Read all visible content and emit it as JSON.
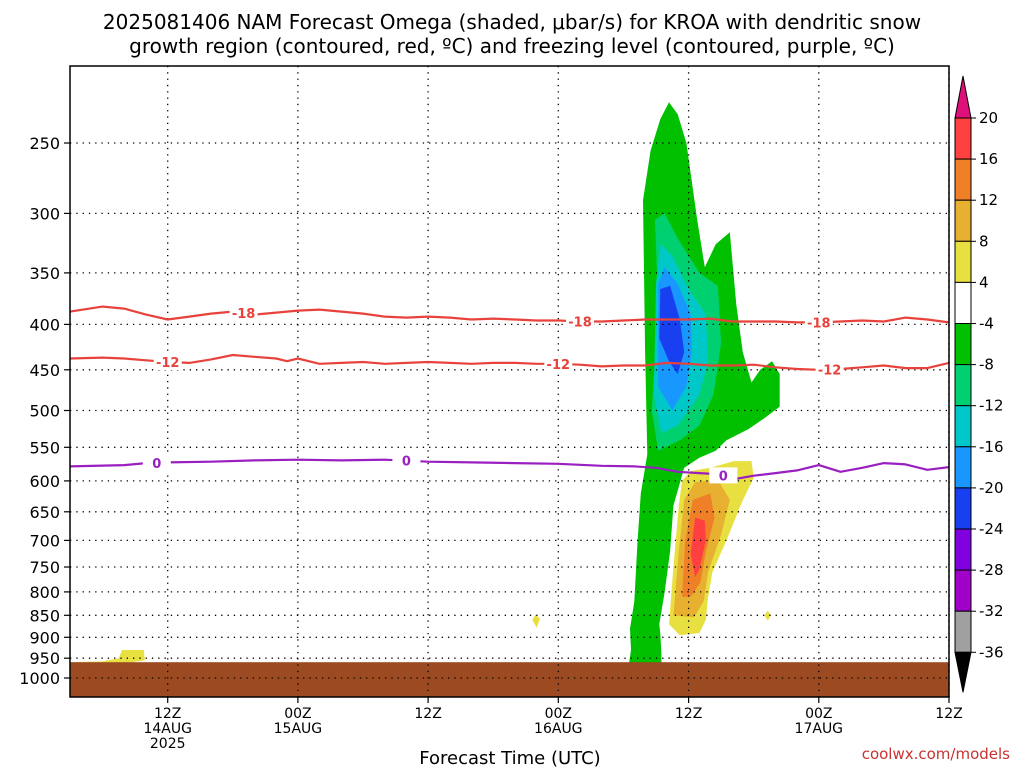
{
  "title": {
    "line1": "2025081406 NAM Forecast Omega (shaded, μbar/s) for KROA with dendritic snow",
    "line2": "growth region (contoured, red, ºC) and freezing level (contoured, purple, ºC)"
  },
  "credit": "coolwx.com/models",
  "colors": {
    "isotherm": "#e8423c",
    "freezing": "#9a1fc0",
    "ground": "#9c4a22",
    "credit": "#c83232"
  },
  "chart_data": {
    "type": "heatmap",
    "xlabel": "Forecast Time (UTC)",
    "ylabel": "",
    "x_range_hours": [
      -3,
      78
    ],
    "y_axis": {
      "scale": "log-pressure",
      "ylim_mb": [
        1030,
        200
      ],
      "ticks": [
        250,
        300,
        350,
        400,
        450,
        500,
        550,
        600,
        650,
        700,
        750,
        800,
        850,
        900,
        950,
        1000
      ]
    },
    "x_ticks": [
      {
        "hour": 6,
        "lines": [
          "12Z",
          "14AUG",
          "2025"
        ]
      },
      {
        "hour": 18,
        "lines": [
          "00Z",
          "15AUG"
        ]
      },
      {
        "hour": 30,
        "lines": [
          "12Z"
        ]
      },
      {
        "hour": 42,
        "lines": [
          "00Z",
          "16AUG"
        ]
      },
      {
        "hour": 54,
        "lines": [
          "12Z"
        ]
      },
      {
        "hour": 66,
        "lines": [
          "00Z",
          "17AUG"
        ]
      },
      {
        "hour": 78,
        "lines": [
          "12Z"
        ]
      }
    ],
    "grid": true,
    "colorbar": {
      "levels": [
        -36,
        -32,
        -28,
        -24,
        -20,
        -16,
        -12,
        -8,
        -4,
        4,
        8,
        12,
        16,
        20
      ],
      "labels": [
        "20",
        "16",
        "12",
        "8",
        "4",
        "-4",
        "-8",
        "-12",
        "-16",
        "-20",
        "-24",
        "-28",
        "-32",
        "-36"
      ],
      "colors_top_to_bottom": [
        "#ff4040",
        "#f08028",
        "#e8b030",
        "#e8e040",
        "#ffffff",
        "#00c000",
        "#00d070",
        "#00c8c8",
        "#1898ff",
        "#1840f0",
        "#8000e0",
        "#a000c8",
        "#a0a0a0"
      ],
      "top_extend": "#e0107a",
      "bottom_extend": "#000000"
    },
    "omega_regions": [
      {
        "value_range": [
          -8,
          -4
        ],
        "color": "#00c000",
        "points": [
          [
            49.5,
            965
          ],
          [
            51.5,
            965
          ],
          [
            51.5,
            940
          ],
          [
            51.4,
            890
          ],
          [
            51.3,
            870
          ],
          [
            51.8,
            800
          ],
          [
            52.3,
            720
          ],
          [
            52.6,
            640
          ],
          [
            53.6,
            580
          ],
          [
            55.0,
            565
          ],
          [
            56.5,
            555
          ],
          [
            57.5,
            540
          ],
          [
            59.5,
            525
          ],
          [
            61.0,
            510
          ],
          [
            62.4,
            495
          ],
          [
            62.4,
            455
          ],
          [
            61.7,
            440
          ],
          [
            60.6,
            450
          ],
          [
            59.8,
            465
          ],
          [
            59.0,
            430
          ],
          [
            58.4,
            380
          ],
          [
            57.8,
            315
          ],
          [
            56.5,
            325
          ],
          [
            55.5,
            345
          ],
          [
            54.8,
            305
          ],
          [
            53.8,
            250
          ],
          [
            53.0,
            232
          ],
          [
            52.2,
            225
          ],
          [
            51.4,
            235
          ],
          [
            50.5,
            255
          ],
          [
            49.8,
            290
          ],
          [
            50.0,
            430
          ],
          [
            50.2,
            560
          ],
          [
            49.6,
            620
          ],
          [
            49.3,
            700
          ],
          [
            49.0,
            820
          ],
          [
            48.6,
            880
          ],
          [
            48.7,
            930
          ],
          [
            48.5,
            965
          ]
        ]
      },
      {
        "value_range": [
          -12,
          -8
        ],
        "color": "#00d070",
        "points": [
          [
            50.6,
            500
          ],
          [
            51.2,
            380
          ],
          [
            50.9,
            305
          ],
          [
            51.8,
            300
          ],
          [
            53.0,
            320
          ],
          [
            55.0,
            350
          ],
          [
            56.7,
            362
          ],
          [
            57.0,
            420
          ],
          [
            56.3,
            480
          ],
          [
            55.0,
            520
          ],
          [
            53.2,
            540
          ],
          [
            51.2,
            555
          ]
        ]
      },
      {
        "value_range": [
          -16,
          -12
        ],
        "color": "#00c8c8",
        "points": [
          [
            50.8,
            480
          ],
          [
            51.0,
            360
          ],
          [
            51.4,
            325
          ],
          [
            52.5,
            335
          ],
          [
            54.0,
            365
          ],
          [
            55.6,
            390
          ],
          [
            55.8,
            440
          ],
          [
            55.0,
            480
          ],
          [
            53.0,
            520
          ],
          [
            51.5,
            530
          ]
        ]
      },
      {
        "value_range": [
          -20,
          -16
        ],
        "color": "#1898ff",
        "points": [
          [
            51.2,
            470
          ],
          [
            51.2,
            360
          ],
          [
            51.8,
            345
          ],
          [
            53.0,
            360
          ],
          [
            54.2,
            390
          ],
          [
            54.3,
            430
          ],
          [
            53.8,
            470
          ],
          [
            52.5,
            500
          ]
        ]
      },
      {
        "value_range": [
          -24,
          -20
        ],
        "color": "#1840f0",
        "points": [
          [
            51.3,
            415
          ],
          [
            51.4,
            365
          ],
          [
            52.3,
            362
          ],
          [
            53.2,
            395
          ],
          [
            53.6,
            430
          ],
          [
            53.0,
            455
          ],
          [
            52.2,
            440
          ]
        ]
      },
      {
        "value_range": [
          4,
          8
        ],
        "color": "#e8e040",
        "points": [
          [
            52.2,
            870
          ],
          [
            52.6,
            750
          ],
          [
            53.1,
            640
          ],
          [
            53.4,
            600
          ],
          [
            54.2,
            585
          ],
          [
            56.0,
            580
          ],
          [
            58.2,
            570
          ],
          [
            59.8,
            570
          ],
          [
            60.0,
            595
          ],
          [
            58.9,
            635
          ],
          [
            57.5,
            700
          ],
          [
            56.2,
            760
          ],
          [
            55.8,
            810
          ],
          [
            55.6,
            860
          ],
          [
            55.0,
            890
          ],
          [
            53.2,
            895
          ]
        ]
      },
      {
        "value_range": [
          8,
          12
        ],
        "color": "#e8b030",
        "points": [
          [
            52.6,
            850
          ],
          [
            53.1,
            720
          ],
          [
            53.6,
            630
          ],
          [
            54.6,
            602
          ],
          [
            56.7,
            598
          ],
          [
            57.8,
            630
          ],
          [
            57.0,
            690
          ],
          [
            55.8,
            760
          ],
          [
            55.4,
            820
          ],
          [
            54.5,
            855
          ]
        ]
      },
      {
        "value_range": [
          12,
          16
        ],
        "color": "#f08028",
        "points": [
          [
            53.4,
            810
          ],
          [
            53.7,
            700
          ],
          [
            54.4,
            630
          ],
          [
            56.0,
            620
          ],
          [
            56.4,
            660
          ],
          [
            55.6,
            720
          ],
          [
            55.1,
            780
          ],
          [
            54.2,
            810
          ]
        ]
      },
      {
        "value_range": [
          16,
          20
        ],
        "color": "#ff4040",
        "points": [
          [
            54.2,
            725
          ],
          [
            54.6,
            660
          ],
          [
            55.5,
            665
          ],
          [
            55.6,
            700
          ],
          [
            55.0,
            755
          ],
          [
            54.6,
            770
          ]
        ]
      },
      {
        "value_range": [
          4,
          8
        ],
        "color": "#e8e040",
        "points": [
          [
            -3,
            960
          ],
          [
            0,
            958
          ],
          [
            1.5,
            950
          ],
          [
            1.8,
            930
          ],
          [
            3.8,
            930
          ],
          [
            3.9,
            955
          ],
          [
            1.5,
            965
          ],
          [
            -3,
            968
          ]
        ]
      },
      {
        "value_range": [
          4,
          8
        ],
        "color": "#e8e040",
        "points": [
          [
            39.6,
            860
          ],
          [
            39.9,
            848
          ],
          [
            40.3,
            858
          ],
          [
            40.0,
            878
          ]
        ]
      },
      {
        "value_range": [
          4,
          8
        ],
        "color": "#e8e040",
        "points": [
          [
            61.0,
            850
          ],
          [
            61.3,
            840
          ],
          [
            61.6,
            850
          ],
          [
            61.3,
            862
          ]
        ]
      }
    ],
    "contours": [
      {
        "label": "-18",
        "color": "#e8423c",
        "points": [
          [
            -3,
            387
          ],
          [
            0,
            382
          ],
          [
            2,
            384
          ],
          [
            4,
            390
          ],
          [
            6,
            395
          ],
          [
            8,
            392
          ],
          [
            10,
            389
          ],
          [
            12,
            387
          ],
          [
            14,
            390
          ],
          [
            16,
            388
          ],
          [
            18,
            386
          ],
          [
            20,
            385
          ],
          [
            22,
            387
          ],
          [
            24,
            389
          ],
          [
            26,
            392
          ],
          [
            28,
            393
          ],
          [
            30,
            392
          ],
          [
            32,
            393
          ],
          [
            34,
            395
          ],
          [
            36,
            394
          ],
          [
            38,
            395
          ],
          [
            40,
            396
          ],
          [
            42,
            396
          ],
          [
            44,
            397
          ],
          [
            46,
            397
          ],
          [
            48,
            396
          ],
          [
            50,
            395
          ],
          [
            52,
            395
          ],
          [
            54,
            395
          ],
          [
            56,
            394
          ],
          [
            58,
            397
          ],
          [
            60,
            397
          ],
          [
            62,
            397
          ],
          [
            64,
            398
          ],
          [
            66,
            398
          ],
          [
            68,
            397
          ],
          [
            70,
            396
          ],
          [
            72,
            397
          ],
          [
            74,
            393
          ],
          [
            76,
            395
          ],
          [
            78,
            398
          ],
          [
            80,
            398
          ],
          [
            81,
            398
          ]
        ],
        "label_hours": [
          13,
          44,
          66
        ]
      },
      {
        "label": "-12",
        "color": "#e8423c",
        "points": [
          [
            -3,
            437
          ],
          [
            0,
            436
          ],
          [
            2,
            437
          ],
          [
            4,
            439
          ],
          [
            6,
            441
          ],
          [
            8,
            442
          ],
          [
            10,
            438
          ],
          [
            12,
            433
          ],
          [
            14,
            435
          ],
          [
            16,
            437
          ],
          [
            17,
            440
          ],
          [
            18,
            437
          ],
          [
            19,
            440
          ],
          [
            20,
            443
          ],
          [
            22,
            442
          ],
          [
            24,
            441
          ],
          [
            26,
            443
          ],
          [
            28,
            442
          ],
          [
            30,
            441
          ],
          [
            32,
            442
          ],
          [
            34,
            443
          ],
          [
            36,
            442
          ],
          [
            38,
            442
          ],
          [
            40,
            443
          ],
          [
            42,
            443
          ],
          [
            44,
            444
          ],
          [
            46,
            446
          ],
          [
            48,
            445
          ],
          [
            50,
            445
          ],
          [
            52,
            442
          ],
          [
            54,
            443
          ],
          [
            56,
            445
          ],
          [
            58,
            445
          ],
          [
            60,
            444
          ],
          [
            62,
            447
          ],
          [
            64,
            449
          ],
          [
            66,
            450
          ],
          [
            68,
            449
          ],
          [
            70,
            447
          ],
          [
            72,
            445
          ],
          [
            74,
            448
          ],
          [
            76,
            448
          ],
          [
            78,
            442
          ],
          [
            80,
            443
          ],
          [
            81,
            440
          ]
        ],
        "label_hours": [
          6,
          42,
          67
        ]
      },
      {
        "label": "0",
        "color": "#9a1fc0",
        "points": [
          [
            -3,
            578
          ],
          [
            2,
            576
          ],
          [
            4,
            573
          ],
          [
            6,
            572
          ],
          [
            10,
            571
          ],
          [
            14,
            569
          ],
          [
            18,
            568
          ],
          [
            22,
            569
          ],
          [
            26,
            568
          ],
          [
            30,
            571
          ],
          [
            34,
            572
          ],
          [
            38,
            573
          ],
          [
            42,
            574
          ],
          [
            46,
            577
          ],
          [
            49,
            578
          ],
          [
            51,
            580
          ],
          [
            53,
            586
          ],
          [
            55,
            588
          ],
          [
            57,
            590
          ],
          [
            58,
            598
          ],
          [
            60,
            592
          ],
          [
            62,
            588
          ],
          [
            64,
            584
          ],
          [
            66,
            576
          ],
          [
            68,
            586
          ],
          [
            70,
            580
          ],
          [
            72,
            573
          ],
          [
            74,
            575
          ],
          [
            76,
            583
          ],
          [
            78,
            579
          ],
          [
            80,
            570
          ],
          [
            81,
            568
          ]
        ],
        "label_hours": [
          5,
          28,
          57.2
        ]
      }
    ],
    "ground": {
      "below_mb": 960,
      "color": "#9c4a22"
    }
  }
}
